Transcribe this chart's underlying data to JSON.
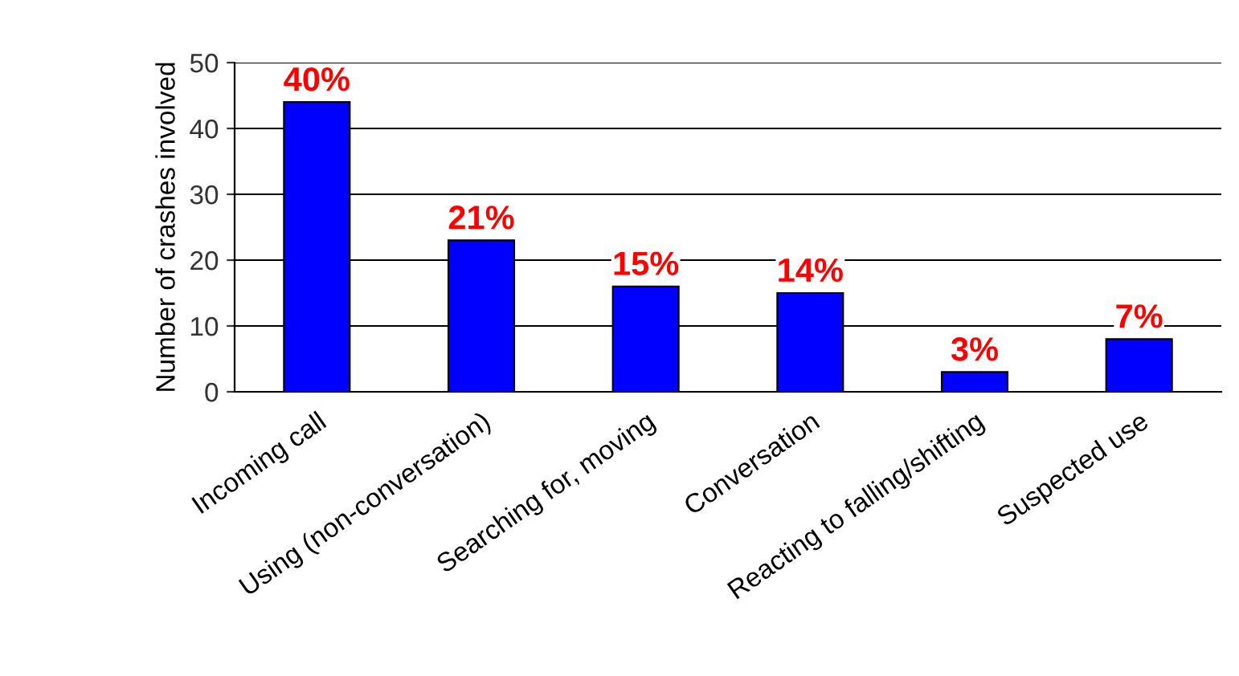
{
  "chart_data": {
    "type": "bar",
    "ylabel": "Number of crashes involved",
    "categories": [
      "Incoming call",
      "Using (non-conversation)",
      "Searching for, moving",
      "Conversation",
      "Reacting to falling/shifting",
      "Suspected use"
    ],
    "values": [
      44,
      23,
      16,
      15,
      3,
      8
    ],
    "annotations": [
      {
        "text": "40%",
        "x": "Incoming call",
        "y": 44
      },
      {
        "text": "21%",
        "x": "Using (non-conversation)",
        "y": 23
      },
      {
        "text": "15%",
        "x": "Searching for, moving",
        "y": 16
      },
      {
        "text": "14%",
        "x": "Conversation",
        "y": 15
      },
      {
        "text": "3%",
        "x": "Reacting to falling/shifting",
        "y": 3
      },
      {
        "text": "7%",
        "x": "Suspected use",
        "y": 8
      }
    ],
    "color": "#0000ff",
    "ylim": [
      0,
      50
    ],
    "yticks": [
      0,
      10,
      20,
      30,
      40,
      50
    ],
    "grid": "y"
  }
}
